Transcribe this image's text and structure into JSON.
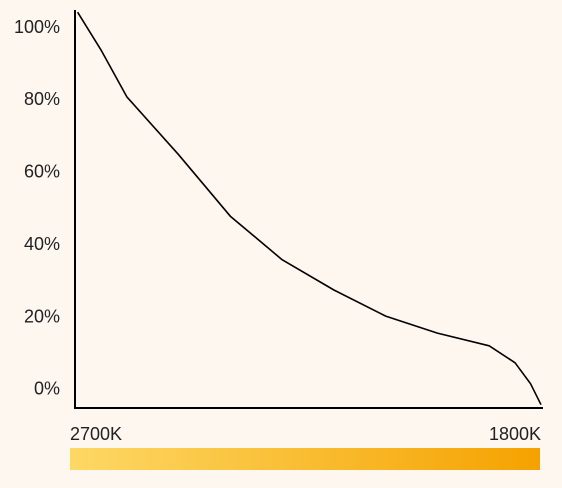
{
  "chart_data": {
    "type": "line",
    "x": [
      2695,
      2650,
      2600,
      2500,
      2400,
      2300,
      2200,
      2100,
      2000,
      1900,
      1850,
      1820,
      1800
    ],
    "series": [
      {
        "color": "#000000",
        "values": [
          104.4,
          94,
          81,
          65,
          48,
          36,
          27.6,
          20.4,
          15.7,
          12.2,
          7.5,
          1.7,
          -4.1
        ]
      }
    ],
    "xlim": [
      2700,
      1800
    ],
    "xticks": [
      {
        "value": 2700,
        "label": "2700K"
      },
      {
        "value": 1800,
        "label": "1800K"
      }
    ],
    "ylim": [
      -5,
      105
    ],
    "yticks": [
      {
        "value": 0,
        "label": "0%"
      },
      {
        "value": 20,
        "label": "20%"
      },
      {
        "value": 40,
        "label": "40%"
      },
      {
        "value": 60,
        "label": "60%"
      },
      {
        "value": 80,
        "label": "80%"
      },
      {
        "value": 100,
        "label": "100%"
      }
    ],
    "grid": false,
    "colorbar": [
      "#fdd865",
      "#f5a200"
    ]
  }
}
